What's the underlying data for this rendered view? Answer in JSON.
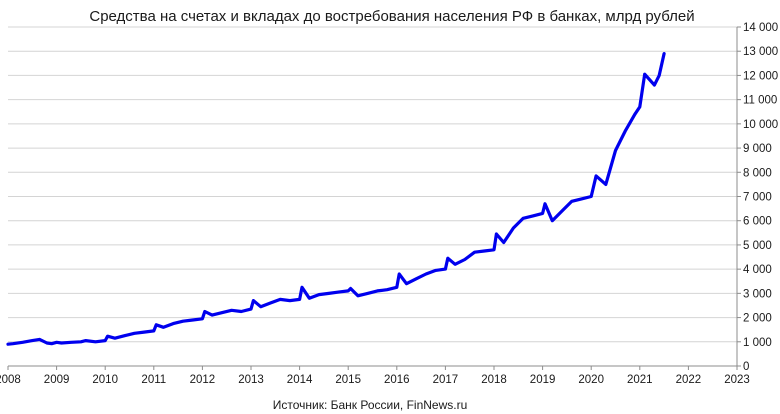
{
  "chart_data": {
    "type": "line",
    "title": "Средства на счетах и вкладах до востребования населения РФ в банках, млрд рублей",
    "source": "Источник: Банк России, FinNews.ru",
    "xlabel": "",
    "ylabel": "",
    "x_ticks": [
      "2008",
      "2009",
      "2010",
      "2011",
      "2012",
      "2013",
      "2014",
      "2015",
      "2016",
      "2017",
      "2018",
      "2019",
      "2020",
      "2021",
      "2022",
      "2023"
    ],
    "y_ticks": [
      "0",
      "1 000",
      "2 000",
      "3 000",
      "4 000",
      "5 000",
      "6 000",
      "7 000",
      "8 000",
      "9 000",
      "10 000",
      "11 000",
      "12 000",
      "13 000",
      "14 000"
    ],
    "xlim": [
      2008,
      2023
    ],
    "ylim": [
      0,
      14000
    ],
    "grid": "horizontal",
    "y_axis_side": "right",
    "legend": "none",
    "series": [
      {
        "color": "#0000ee",
        "x": [
          2008.0,
          2008.1,
          2008.3,
          2008.5,
          2008.65,
          2008.8,
          2008.9,
          2009.0,
          2009.1,
          2009.3,
          2009.5,
          2009.6,
          2009.8,
          2010.0,
          2010.05,
          2010.2,
          2010.4,
          2010.6,
          2010.8,
          2011.0,
          2011.05,
          2011.2,
          2011.4,
          2011.6,
          2011.8,
          2012.0,
          2012.05,
          2012.2,
          2012.4,
          2012.6,
          2012.8,
          2013.0,
          2013.05,
          2013.2,
          2013.4,
          2013.6,
          2013.8,
          2014.0,
          2014.05,
          2014.2,
          2014.4,
          2014.6,
          2014.8,
          2015.0,
          2015.05,
          2015.2,
          2015.4,
          2015.6,
          2015.8,
          2016.0,
          2016.05,
          2016.2,
          2016.4,
          2016.6,
          2016.8,
          2017.0,
          2017.05,
          2017.2,
          2017.4,
          2017.6,
          2017.8,
          2018.0,
          2018.05,
          2018.2,
          2018.4,
          2018.6,
          2018.8,
          2019.0,
          2019.05,
          2019.2,
          2019.4,
          2019.6,
          2019.8,
          2020.0,
          2020.1,
          2020.3,
          2020.5,
          2020.7,
          2020.9,
          2021.0,
          2021.1,
          2021.3,
          2021.4,
          2021.5
        ],
        "y": [
          900,
          920,
          980,
          1050,
          1100,
          950,
          920,
          980,
          950,
          980,
          1000,
          1050,
          1000,
          1050,
          1230,
          1150,
          1250,
          1350,
          1400,
          1450,
          1700,
          1600,
          1750,
          1850,
          1900,
          1950,
          2250,
          2100,
          2200,
          2300,
          2250,
          2350,
          2700,
          2450,
          2600,
          2750,
          2700,
          2750,
          3250,
          2800,
          2950,
          3000,
          3050,
          3100,
          3200,
          2900,
          3000,
          3100,
          3150,
          3250,
          3800,
          3400,
          3600,
          3800,
          3950,
          4000,
          4450,
          4200,
          4400,
          4700,
          4750,
          4800,
          5450,
          5100,
          5700,
          6100,
          6200,
          6300,
          6700,
          6000,
          6400,
          6800,
          6900,
          7000,
          7850,
          7500,
          8900,
          9700,
          10400,
          10700,
          12050,
          11600,
          12000,
          12900
        ]
      }
    ]
  }
}
